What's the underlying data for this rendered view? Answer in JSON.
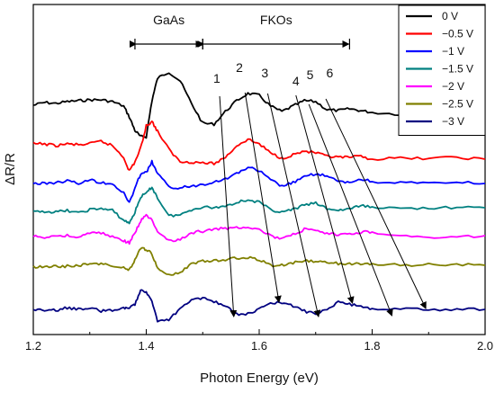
{
  "chart_data": {
    "type": "line",
    "xlabel": "Photon Energy (eV)",
    "ylabel": "ΔR/R",
    "xlim": [
      1.2,
      2.0
    ],
    "xticks": [
      "1.2",
      "1.4",
      "1.6",
      "1.8",
      "2.0"
    ],
    "x": [
      1.2,
      1.22,
      1.24,
      1.26,
      1.28,
      1.3,
      1.32,
      1.34,
      1.36,
      1.37,
      1.38,
      1.39,
      1.4,
      1.41,
      1.42,
      1.44,
      1.46,
      1.48,
      1.5,
      1.52,
      1.54,
      1.56,
      1.58,
      1.6,
      1.62,
      1.64,
      1.66,
      1.68,
      1.7,
      1.72,
      1.74,
      1.76,
      1.78,
      1.8,
      1.85,
      1.9,
      1.95,
      2.0
    ],
    "series": [
      {
        "name": "0 V",
        "color": "#000000",
        "values": [
          117,
          114,
          115,
          113,
          112,
          111,
          111,
          113,
          118,
          130,
          145,
          152,
          152,
          112,
          87,
          80,
          90,
          115,
          137,
          138,
          124,
          112,
          104,
          106,
          118,
          124,
          118,
          112,
          113,
          122,
          123,
          121,
          123,
          125,
          127,
          126,
          128,
          127
        ]
      },
      {
        "name": "−0.5 V",
        "color": "#ff0000",
        "values": [
          160,
          160,
          162,
          160,
          161,
          160,
          157,
          162,
          175,
          190,
          180,
          165,
          140,
          135,
          146,
          166,
          180,
          180,
          181,
          182,
          175,
          162,
          155,
          160,
          170,
          176,
          172,
          168,
          170,
          174,
          175,
          175,
          174,
          177,
          176,
          176,
          175,
          177
        ]
      },
      {
        "name": "−1 V",
        "color": "#0000ff",
        "values": [
          204,
          204,
          203,
          201,
          204,
          200,
          203,
          204,
          215,
          225,
          210,
          193,
          192,
          180,
          193,
          208,
          209,
          207,
          205,
          202,
          199,
          193,
          186,
          190,
          200,
          207,
          203,
          197,
          193,
          196,
          202,
          203,
          199,
          202,
          203,
          204,
          203,
          204
        ]
      },
      {
        "name": "−1.5 V",
        "color": "#008080",
        "values": [
          236,
          235,
          236,
          234,
          237,
          233,
          232,
          234,
          245,
          248,
          236,
          219,
          215,
          208,
          220,
          240,
          239,
          233,
          230,
          231,
          229,
          225,
          222,
          225,
          233,
          236,
          233,
          228,
          226,
          232,
          234,
          232,
          229,
          230,
          232,
          231,
          231,
          231
        ]
      },
      {
        "name": "−2 V",
        "color": "#ff00ff",
        "values": [
          263,
          264,
          262,
          262,
          264,
          259,
          259,
          263,
          268,
          270,
          259,
          246,
          239,
          245,
          259,
          267,
          267,
          259,
          257,
          255,
          254,
          253,
          252,
          255,
          262,
          266,
          261,
          255,
          257,
          260,
          261,
          260,
          258,
          258,
          262,
          264,
          264,
          262
        ]
      },
      {
        "name": "−2.5 V",
        "color": "#808000",
        "values": [
          297,
          296,
          296,
          296,
          295,
          294,
          293,
          296,
          298,
          300,
          289,
          276,
          278,
          282,
          298,
          305,
          303,
          294,
          290,
          290,
          289,
          287,
          286,
          289,
          295,
          295,
          292,
          290,
          291,
          292,
          293,
          293,
          294,
          293,
          295,
          294,
          294,
          295
        ]
      },
      {
        "name": "−3 V",
        "color": "#000080",
        "values": [
          344,
          346,
          345,
          342,
          344,
          342,
          346,
          345,
          342,
          343,
          338,
          322,
          324,
          335,
          357,
          356,
          343,
          333,
          331,
          335,
          341,
          349,
          349,
          344,
          338,
          336,
          340,
          346,
          349,
          343,
          336,
          338,
          341,
          343,
          343,
          344,
          344,
          344
        ]
      }
    ],
    "brackets": [
      {
        "label": "GaAs",
        "from": 1.38,
        "to": 1.5
      },
      {
        "label": "FKOs",
        "from": 1.5,
        "to": 1.76
      }
    ],
    "arrows": [
      {
        "label": "1",
        "from": [
          1.53,
          107
        ],
        "to": [
          1.555,
          352
        ]
      },
      {
        "label": "2",
        "from": [
          1.575,
          103
        ],
        "to": [
          1.635,
          336
        ]
      },
      {
        "label": "3",
        "from": [
          1.615,
          104
        ],
        "to": [
          1.705,
          352
        ]
      },
      {
        "label": "4",
        "from": [
          1.665,
          106
        ],
        "to": [
          1.765,
          337
        ]
      },
      {
        "label": "5",
        "from": [
          1.688,
          116
        ],
        "to": [
          1.835,
          351
        ]
      },
      {
        "label": "6",
        "from": [
          1.718,
          110
        ],
        "to": [
          1.895,
          343
        ]
      }
    ],
    "arrow_labels_pos": [
      [
        1.525,
        92
      ],
      [
        1.565,
        80
      ],
      [
        1.61,
        86
      ],
      [
        1.665,
        95
      ],
      [
        1.69,
        88
      ],
      [
        1.725,
        86
      ]
    ],
    "legend_position": "top-right"
  }
}
